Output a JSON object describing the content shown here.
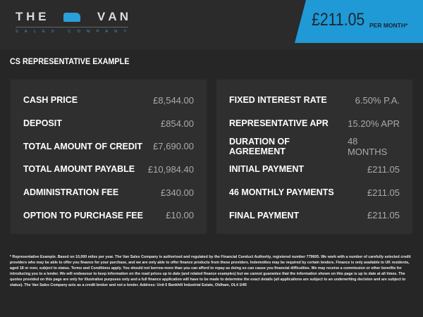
{
  "logo": {
    "top_left": "T H E",
    "top_right": "V A N",
    "sub": "SALES COMPANY"
  },
  "price_badge": {
    "amount": "£211.05",
    "label": "PER MONTH*"
  },
  "section_title": "CS REPRESENTATIVE EXAMPLE",
  "left_panel": [
    {
      "label": "CASH PRICE",
      "value": "£8,544.00"
    },
    {
      "label": "DEPOSIT",
      "value": "£854.00"
    },
    {
      "label": "TOTAL AMOUNT OF CREDIT",
      "value": "£7,690.00"
    },
    {
      "label": "TOTAL AMOUNT PAYABLE",
      "value": "£10,984.40"
    },
    {
      "label": "ADMINISTRATION FEE",
      "value": "£340.00"
    },
    {
      "label": "OPTION TO PURCHASE FEE",
      "value": "£10.00"
    }
  ],
  "right_panel": [
    {
      "label": "FIXED INTEREST RATE",
      "value": "6.50% P.A."
    },
    {
      "label": "REPRESENTATIVE APR",
      "value": "15.20% APR"
    },
    {
      "label": "DURATION OF AGREEMENT",
      "value": "48 MONTHS"
    },
    {
      "label": "INITIAL PAYMENT",
      "value": "£211.05"
    },
    {
      "label": "46 MONTHLY PAYMENTS",
      "value": "£211.05"
    },
    {
      "label": "FINAL PAYMENT",
      "value": "£211.05"
    }
  ],
  "footnote": "* Representative Example. Based on 10,000 miles per year. The Van Sales Company is authorised and regulated by the Financial Conduct Authority, registered number 779605. We work with a number of carefully selected credit providers who may be able to offer you finance for your purchase, and we are only able to offer finance products from these providers. Indemnities may be required by certain lenders. Finance is only available to UK residents, aged 18 or over, subject to status. Terms and Conditions apply. You should not borrow more than you can afford to repay as doing so can cause you financial difficulties. We may receive a commission or other benefits for introducing you to a lender. We will endeavour to keep information on the road prices up to date (and related finance examples) but we cannot guarantee that the information shown on this page is up to date at all times. The quotes provided on this page are only for illustrative purposes only and a full finance application will have to be made to determine the exact details (all applications are subject to an underwriting decision and are subject to status). The Van Sales Company acts as a credit broker and not a lender. Address: Unit 6 Bankhill Industrial Estate, Oldham, OL4 1HR"
}
